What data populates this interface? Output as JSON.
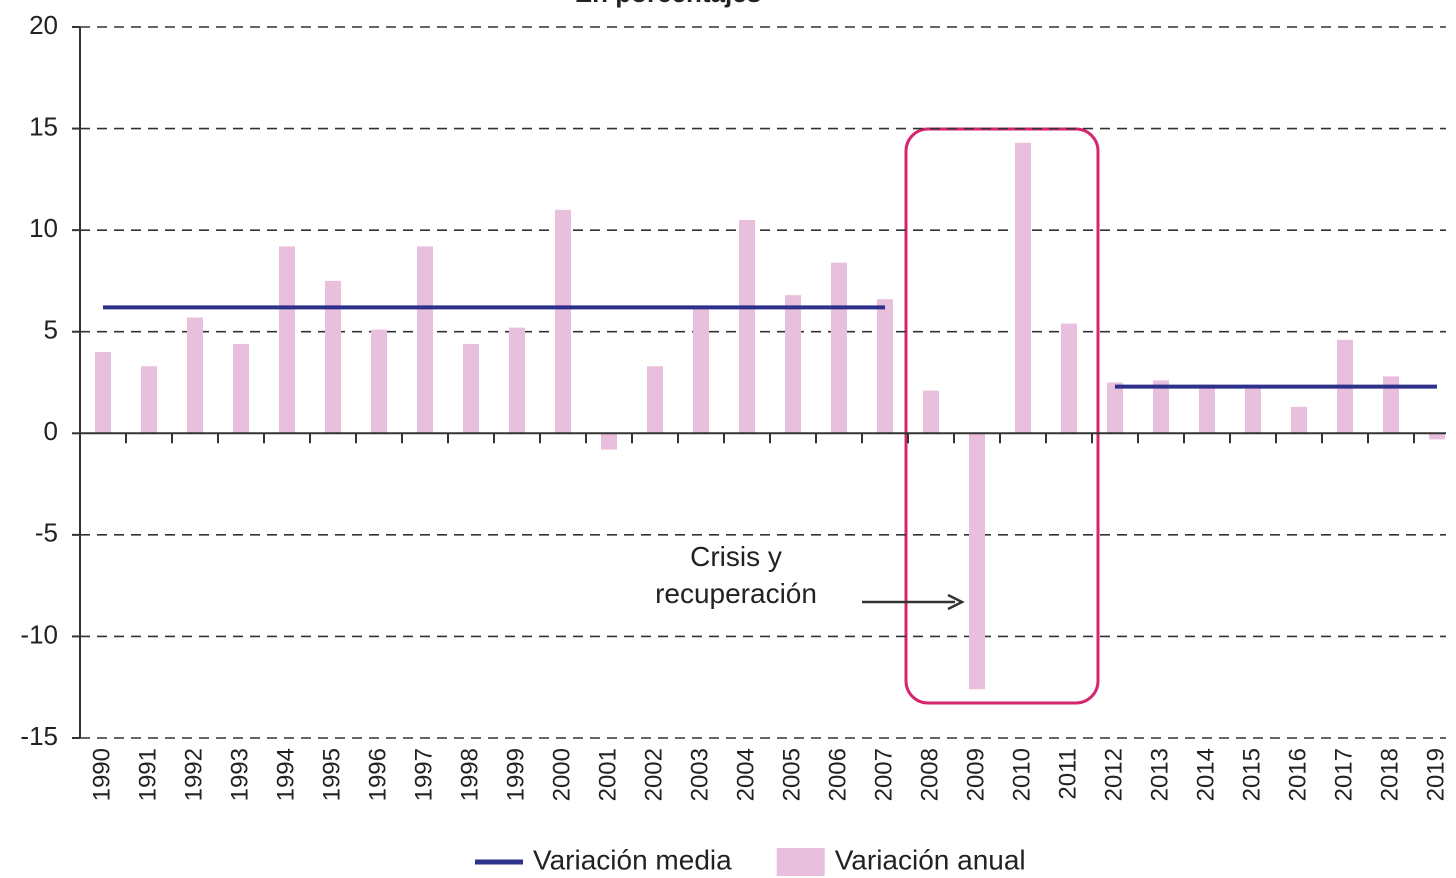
{
  "chart_data": {
    "type": "bar",
    "subtitle": "En porcentajes",
    "categories": [
      "1990",
      "1991",
      "1992",
      "1993",
      "1994",
      "1995",
      "1996",
      "1997",
      "1998",
      "1999",
      "2000",
      "2001",
      "2002",
      "2003",
      "2004",
      "2005",
      "2006",
      "2007",
      "2008",
      "2009",
      "2010",
      "2011",
      "2012",
      "2013",
      "2014",
      "2015",
      "2016",
      "2017",
      "2018",
      "2019"
    ],
    "series": [
      {
        "name": "Variación media",
        "type": "line",
        "color": "#2e3189",
        "values": [
          6.2,
          6.2,
          6.2,
          6.2,
          6.2,
          6.2,
          6.2,
          6.2,
          6.2,
          6.2,
          6.2,
          6.2,
          6.2,
          6.2,
          6.2,
          6.2,
          6.2,
          6.2,
          null,
          null,
          null,
          null,
          2.3,
          2.3,
          2.3,
          2.3,
          2.3,
          2.3,
          2.3,
          2.3
        ]
      },
      {
        "name": "Variación anual",
        "type": "bar",
        "color": "#e8bfdc",
        "values": [
          4.0,
          3.3,
          5.7,
          4.4,
          9.2,
          7.5,
          5.1,
          9.2,
          4.4,
          5.2,
          11.0,
          -0.8,
          3.3,
          6.2,
          10.5,
          6.8,
          8.4,
          6.6,
          2.1,
          -12.6,
          14.3,
          5.4,
          2.5,
          2.6,
          2.4,
          2.2,
          1.3,
          4.6,
          2.8,
          -0.3
        ]
      }
    ],
    "ylim": [
      -15,
      20
    ],
    "yticks": [
      -15,
      -10,
      -5,
      0,
      5,
      10,
      15,
      20
    ],
    "grid": true,
    "annotation": {
      "lines": [
        "Crisis y",
        "recuperación"
      ]
    }
  }
}
